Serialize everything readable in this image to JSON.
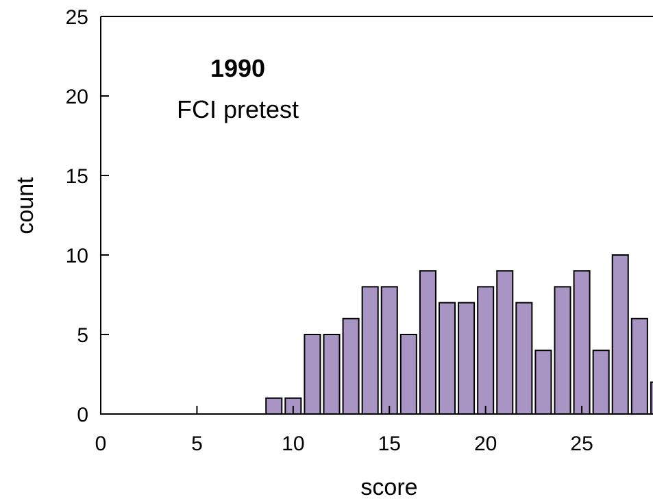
{
  "chart_data": {
    "type": "bar",
    "xlabel": "score",
    "ylabel": "count",
    "xlim": [
      0,
      28.7
    ],
    "ylim": [
      0,
      25
    ],
    "xticks": [
      0,
      5,
      10,
      15,
      20,
      25
    ],
    "yticks": [
      0,
      5,
      10,
      15,
      20,
      25
    ],
    "annotation": {
      "year": "1990",
      "label": "FCI pretest"
    },
    "bar_color": "#a995c4",
    "bar_width": 0.82,
    "bars": [
      {
        "x": 9,
        "value": 1
      },
      {
        "x": 10,
        "value": 1
      },
      {
        "x": 11,
        "value": 5
      },
      {
        "x": 12,
        "value": 5
      },
      {
        "x": 13,
        "value": 6
      },
      {
        "x": 14,
        "value": 8
      },
      {
        "x": 15,
        "value": 8
      },
      {
        "x": 16,
        "value": 5
      },
      {
        "x": 17,
        "value": 9
      },
      {
        "x": 18,
        "value": 7
      },
      {
        "x": 19,
        "value": 7
      },
      {
        "x": 20,
        "value": 8
      },
      {
        "x": 21,
        "value": 9
      },
      {
        "x": 22,
        "value": 7
      },
      {
        "x": 23,
        "value": 4
      },
      {
        "x": 24,
        "value": 8
      },
      {
        "x": 25,
        "value": 9
      },
      {
        "x": 26,
        "value": 4
      },
      {
        "x": 27,
        "value": 10
      },
      {
        "x": 28,
        "value": 6
      },
      {
        "x": 29,
        "value": 2
      }
    ]
  }
}
